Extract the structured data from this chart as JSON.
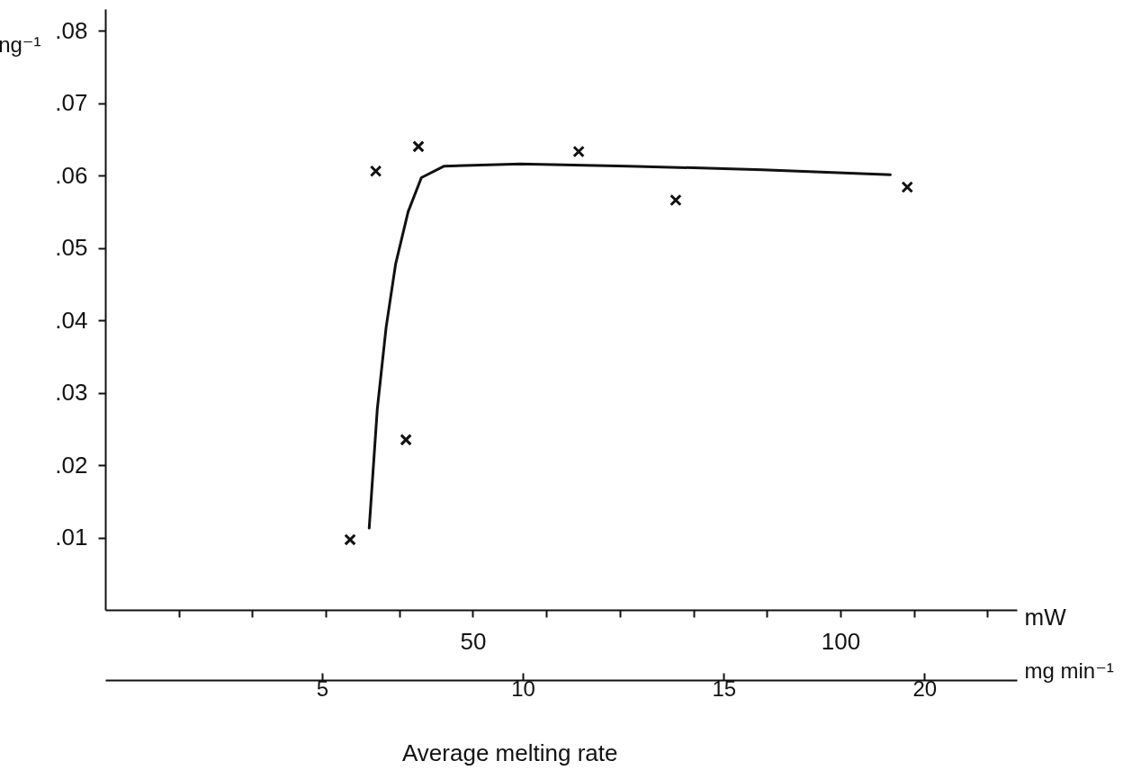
{
  "chart_data": {
    "type": "scatter",
    "ylabel": "ng⁻¹",
    "xlabel": "mW",
    "x2label": "mg min⁻¹",
    "annotations": [
      "Average melting rate"
    ],
    "xlim": [
      0,
      124
    ],
    "xticks": [
      {
        "value": 10,
        "label": null
      },
      {
        "value": 20,
        "label": null
      },
      {
        "value": 30,
        "label": null
      },
      {
        "value": 40,
        "label": null
      },
      50,
      {
        "value": 60,
        "label": null
      },
      {
        "value": 70,
        "label": null
      },
      {
        "value": 80,
        "label": null
      },
      {
        "value": 90,
        "label": null
      },
      100,
      {
        "value": 110,
        "label": null
      },
      {
        "value": 120,
        "label": null
      }
    ],
    "x2lim": [
      -0.4,
      22.3
    ],
    "x2ticks": [
      5,
      10,
      15,
      20
    ],
    "ylim": [
      0,
      0.083
    ],
    "yticks": [
      {
        "value": 0.01,
        "label": ".01"
      },
      {
        "value": 0.02,
        "label": ".02"
      },
      {
        "value": 0.03,
        "label": ".03"
      },
      {
        "value": 0.04,
        "label": ".04"
      },
      {
        "value": 0.05,
        "label": ".05"
      },
      {
        "value": 0.06,
        "label": ".06"
      },
      {
        "value": 0.07,
        "label": ".07"
      },
      {
        "value": 0.08,
        "label": ".08"
      }
    ],
    "grid": false,
    "series": [
      {
        "color": "#111111",
        "marker": "cross",
        "x": [
          33.3,
          36.8,
          40.9,
          42.6,
          64.4,
          77.6,
          109.1
        ],
        "values": [
          0.0097,
          0.0606,
          0.0235,
          0.064,
          0.0633,
          0.0566,
          0.0584
        ]
      },
      {
        "type": "line",
        "color": "#111111",
        "line_style": "solid",
        "x": [
          35.9,
          37.0,
          38.2,
          39.5,
          41.2,
          43.0,
          46.1,
          56.5,
          71.1,
          89.4,
          106.8
        ],
        "values": [
          0.0113,
          0.0277,
          0.039,
          0.0478,
          0.055,
          0.0597,
          0.0613,
          0.0616,
          0.0613,
          0.0608,
          0.0601
        ]
      }
    ]
  }
}
